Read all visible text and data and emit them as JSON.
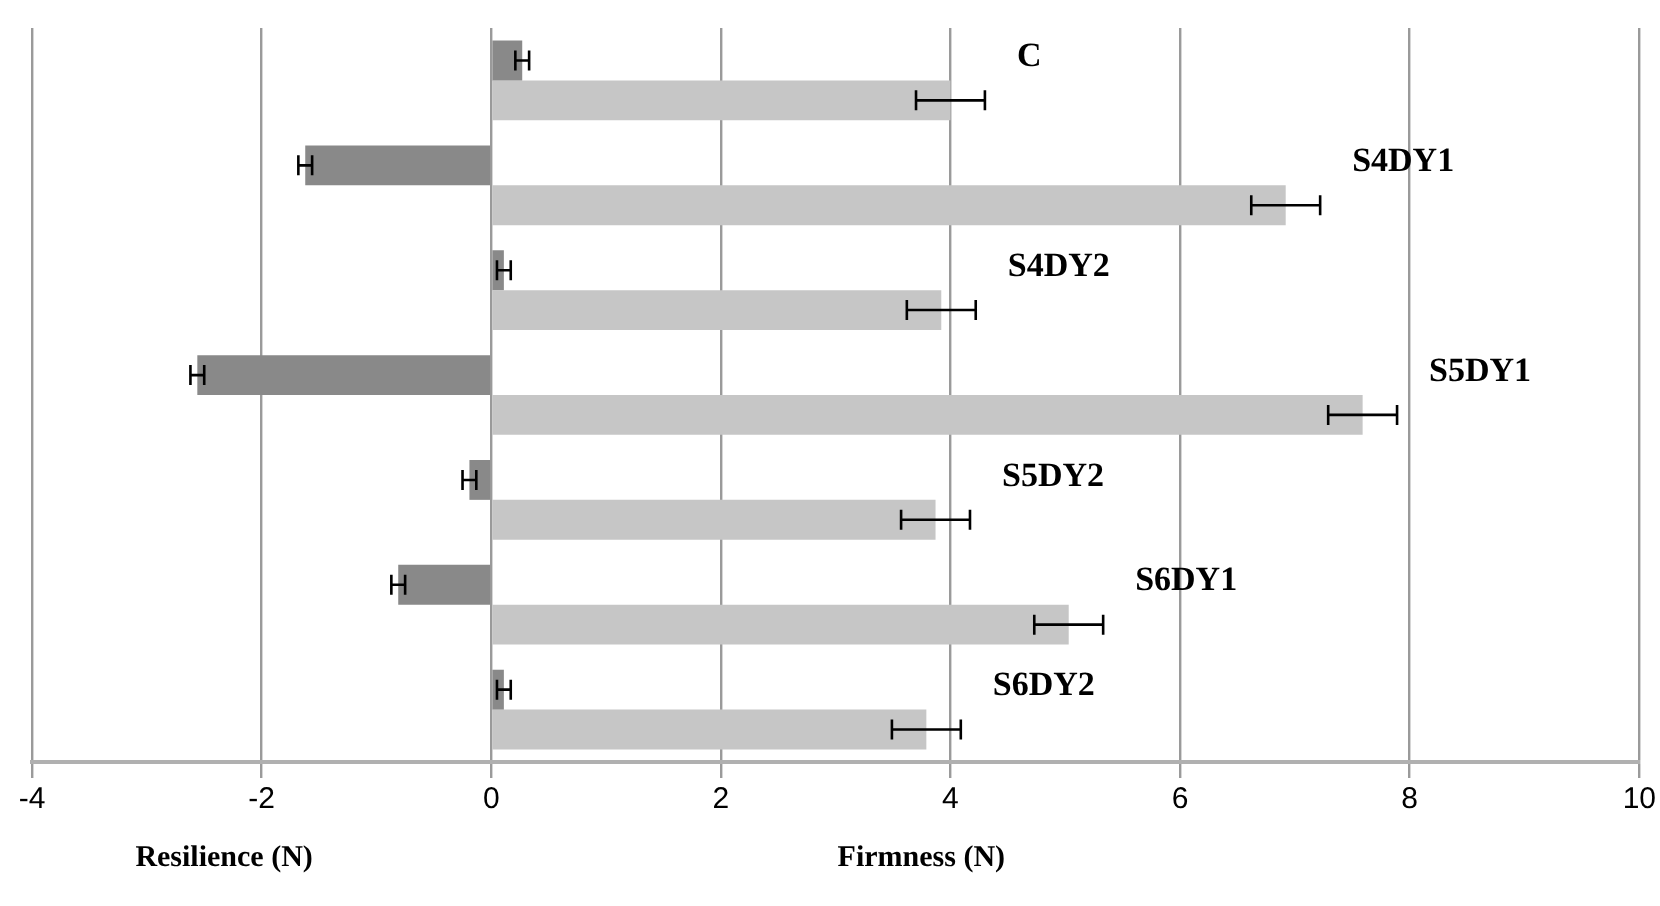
{
  "chart_data": {
    "type": "bar",
    "orientation": "horizontal",
    "categories": [
      "C",
      "S4DY1",
      "S4DY2",
      "S5DY1",
      "S5DY2",
      "S6DY1",
      "S6DY2"
    ],
    "series": [
      {
        "color": "#898989",
        "values": [
          0.27,
          -1.62,
          0.11,
          -2.56,
          -0.19,
          -0.81,
          0.11
        ],
        "errors": [
          0.06,
          0.06,
          0.06,
          0.06,
          0.06,
          0.06,
          0.06
        ]
      },
      {
        "color": "#c6c6c6",
        "values": [
          4.0,
          6.92,
          3.92,
          7.59,
          3.87,
          5.03,
          3.79
        ],
        "errors": [
          0.3,
          0.3,
          0.3,
          0.3,
          0.3,
          0.3,
          0.3
        ]
      }
    ],
    "xlim": [
      -4,
      10
    ],
    "xticks": [
      -4,
      -2,
      0,
      2,
      4,
      6,
      8,
      10
    ],
    "xlabel": "Firmness (N)",
    "annotations": [
      "Resilience (N)"
    ],
    "grid": "x",
    "legend": false
  }
}
